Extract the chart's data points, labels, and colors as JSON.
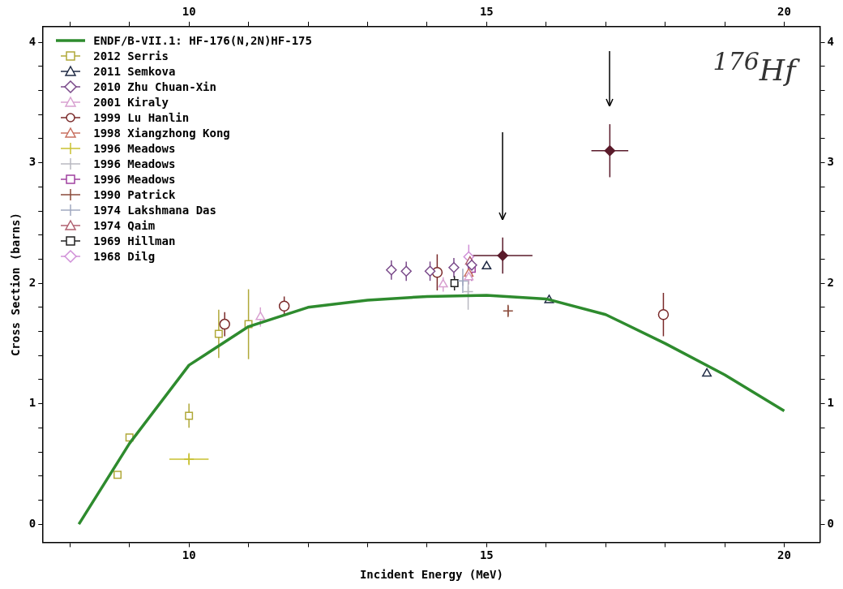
{
  "chart_data": {
    "type": "scatter",
    "xlabel": "Incident Energy (MeV)",
    "ylabel": "Cross Section (barns)",
    "xlim": [
      7.55,
      20.6
    ],
    "ylim": [
      -0.15,
      4.13
    ],
    "xticks": [
      {
        "value": 8,
        "label": null
      },
      {
        "value": 9,
        "label": null
      },
      10,
      {
        "value": 11,
        "label": null
      },
      {
        "value": 12,
        "label": null
      },
      {
        "value": 13,
        "label": null
      },
      {
        "value": 14,
        "label": null
      },
      15,
      {
        "value": 16,
        "label": null
      },
      {
        "value": 17,
        "label": null
      },
      {
        "value": 18,
        "label": null
      },
      {
        "value": 19,
        "label": null
      },
      20
    ],
    "yticks": [
      0,
      {
        "value": 0.2,
        "label": null
      },
      {
        "value": 0.4,
        "label": null
      },
      {
        "value": 0.6,
        "label": null
      },
      {
        "value": 0.8,
        "label": null
      },
      1,
      {
        "value": 1.2,
        "label": null
      },
      {
        "value": 1.4,
        "label": null
      },
      {
        "value": 1.6,
        "label": null
      },
      {
        "value": 1.8,
        "label": null
      },
      2,
      {
        "value": 2.2,
        "label": null
      },
      {
        "value": 2.4,
        "label": null
      },
      {
        "value": 2.6,
        "label": null
      },
      {
        "value": 2.8,
        "label": null
      },
      3,
      {
        "value": 3.2,
        "label": null
      },
      {
        "value": 3.4,
        "label": null
      },
      {
        "value": 3.6,
        "label": null
      },
      {
        "value": 3.8,
        "label": null
      },
      4
    ],
    "x2lim": [
      7.55,
      20.6
    ],
    "x2ticks": [
      {
        "value": 8,
        "label": null
      },
      {
        "value": 9,
        "label": null
      },
      10,
      {
        "value": 11,
        "label": null
      },
      {
        "value": 12,
        "label": null
      },
      {
        "value": 13,
        "label": null
      },
      {
        "value": 14,
        "label": null
      },
      15,
      {
        "value": 16,
        "label": null
      },
      {
        "value": 17,
        "label": null
      },
      {
        "value": 18,
        "label": null
      },
      {
        "value": 19,
        "label": null
      },
      20
    ],
    "y2lim": [
      -0.15,
      4.13
    ],
    "y2ticks": [
      0,
      {
        "value": 0.2,
        "label": null
      },
      {
        "value": 0.4,
        "label": null
      },
      {
        "value": 0.6,
        "label": null
      },
      {
        "value": 0.8,
        "label": null
      },
      1,
      {
        "value": 1.2,
        "label": null
      },
      {
        "value": 1.4,
        "label": null
      },
      {
        "value": 1.6,
        "label": null
      },
      {
        "value": 1.8,
        "label": null
      },
      2,
      {
        "value": 2.2,
        "label": null
      },
      {
        "value": 2.4,
        "label": null
      },
      {
        "value": 2.6,
        "label": null
      },
      {
        "value": 2.8,
        "label": null
      },
      3,
      {
        "value": 3.2,
        "label": null
      },
      {
        "value": 3.4,
        "label": null
      },
      {
        "value": 3.6,
        "label": null
      },
      {
        "value": 3.8,
        "label": null
      },
      4
    ],
    "legend": "top left",
    "annotations": [
      "$^{176}$Hf"
    ],
    "series": [
      {
        "type": "line",
        "name": "ENDF/B-VII.1: HF-176(N,2N)HF-175",
        "color": "#2e8b2e",
        "marker": "none",
        "x": [
          8.15,
          9,
          10,
          11,
          12,
          13,
          14,
          15,
          16,
          17,
          18,
          19,
          20
        ],
        "values": [
          0,
          0.67,
          1.32,
          1.64,
          1.8,
          1.86,
          1.89,
          1.9,
          1.87,
          1.74,
          1.5,
          1.24,
          0.94
        ]
      },
      {
        "type": "scatter",
        "name": "2012 Serris",
        "color": "#b0a838",
        "marker": "square",
        "x": [
          8.8,
          9,
          10,
          10.5,
          11
        ],
        "values": [
          0.41,
          0.72,
          0.9,
          1.58,
          1.66
        ],
        "errors": [
          null,
          null,
          0.1,
          0.2,
          0.29
        ]
      },
      {
        "type": "scatter",
        "name": "2011 Semkova",
        "color": "#1f2a44",
        "marker": "triangle",
        "x": [
          15,
          16.05,
          18.7
        ],
        "values": [
          2.14,
          1.86,
          1.25
        ]
      },
      {
        "type": "scatter",
        "name": "2010 Zhu Chuan-Xin",
        "color": "#7a4a8a",
        "marker": "diamond",
        "x": [
          13.4,
          13.65,
          14.05,
          14.45,
          14.75
        ],
        "values": [
          2.11,
          2.1,
          2.1,
          2.13,
          2.15
        ],
        "errors": [
          0.08,
          0.08,
          0.08,
          0.08,
          0.08
        ]
      },
      {
        "type": "scatter",
        "name": "2001 Kiraly",
        "color": "#d8a0d0",
        "marker": "triangle",
        "x": [
          11.2,
          14.27,
          14.7
        ],
        "values": [
          1.72,
          1.99,
          2.05
        ],
        "errors": [
          0.08,
          0.06,
          0.06
        ]
      },
      {
        "type": "scatter",
        "name": "1999 Lu Hanlin",
        "color": "#7a2a2a",
        "marker": "circle",
        "x": [
          10.6,
          11.6,
          14.17,
          17.97
        ],
        "values": [
          1.66,
          1.81,
          2.09,
          1.74
        ],
        "errors": [
          0.1,
          0.08,
          0.15,
          0.18
        ]
      },
      {
        "type": "scatter",
        "name": "1998 Xiangzhong Kong",
        "color": "#c87060",
        "marker": "triangle",
        "x": [
          14.7
        ],
        "values": [
          2.08
        ]
      },
      {
        "type": "scatter",
        "name": "1996 Meadows",
        "color": "#c8c030",
        "marker": "cross",
        "x": [
          10
        ],
        "values": [
          0.54
        ],
        "errors": [
          0.05
        ],
        "xerrors": [
          0.33
        ]
      },
      {
        "type": "scatter",
        "name": "1996 Meadows",
        "color": "#b8b8c0",
        "marker": "cross",
        "x": [
          14.69
        ],
        "values": [
          1.93
        ],
        "errors": [
          0.15
        ]
      },
      {
        "type": "scatter",
        "name": "1996 Meadows",
        "color": "#a040a0",
        "marker": "square",
        "x": [
          14.75
        ],
        "values": [
          2.12
        ],
        "errors": [
          0.1
        ]
      },
      {
        "type": "scatter",
        "name": "1990 Patrick",
        "color": "#8a4a3a",
        "marker": "cross",
        "x": [
          15.36
        ],
        "values": [
          1.77
        ],
        "errors": [
          0.05
        ]
      },
      {
        "type": "scatter",
        "name": "1974 Lakshmana Das",
        "color": "#a0a8c0",
        "marker": "cross",
        "x": [
          14.6
        ],
        "values": [
          2.02
        ],
        "errors": [
          0.1
        ]
      },
      {
        "type": "scatter",
        "name": "1974 Qaim",
        "color": "#b06070",
        "marker": "triangle",
        "x": [
          14.72
        ],
        "values": [
          2.18
        ]
      },
      {
        "type": "scatter",
        "name": "1969 Hillman",
        "color": "#202020",
        "marker": "square",
        "x": [
          14.46
        ],
        "values": [
          2.0
        ],
        "errors": [
          0.06
        ]
      },
      {
        "type": "scatter",
        "name": "1968 Dilg",
        "color": "#d090d8",
        "marker": "diamond",
        "x": [
          14.7
        ],
        "values": [
          2.22
        ],
        "errors": [
          0.1
        ]
      },
      {
        "type": "scatter",
        "color": "#5a1a2a",
        "marker": "diamond",
        "x": [
          15.27,
          17.07
        ],
        "values": [
          2.23,
          3.1
        ],
        "errors": [
          0.15,
          0.22
        ],
        "xerrors": [
          0.5,
          0.31
        ]
      }
    ]
  }
}
